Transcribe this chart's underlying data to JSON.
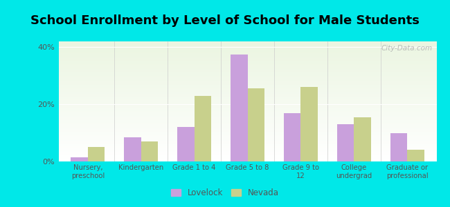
{
  "title": "School Enrollment by Level of School for Male Students",
  "categories": [
    "Nursery,\npreschool",
    "Kindergarten",
    "Grade 1 to 4",
    "Grade 5 to 8",
    "Grade 9 to\n12",
    "College\nundergrad",
    "Graduate or\nprofessional"
  ],
  "lovelock": [
    1.5,
    8.5,
    12.0,
    37.5,
    17.0,
    13.0,
    10.0
  ],
  "nevada": [
    5.0,
    7.0,
    23.0,
    25.5,
    26.0,
    15.5,
    4.0
  ],
  "lovelock_color": "#c9a0dc",
  "nevada_color": "#c8d08c",
  "background_color": "#00e8e8",
  "ylim": [
    0,
    42
  ],
  "yticks": [
    0,
    20,
    40
  ],
  "ytick_labels": [
    "0%",
    "20%",
    "40%"
  ],
  "title_fontsize": 13,
  "legend_labels": [
    "Lovelock",
    "Nevada"
  ],
  "bar_width": 0.32,
  "watermark": "City-Data.com"
}
